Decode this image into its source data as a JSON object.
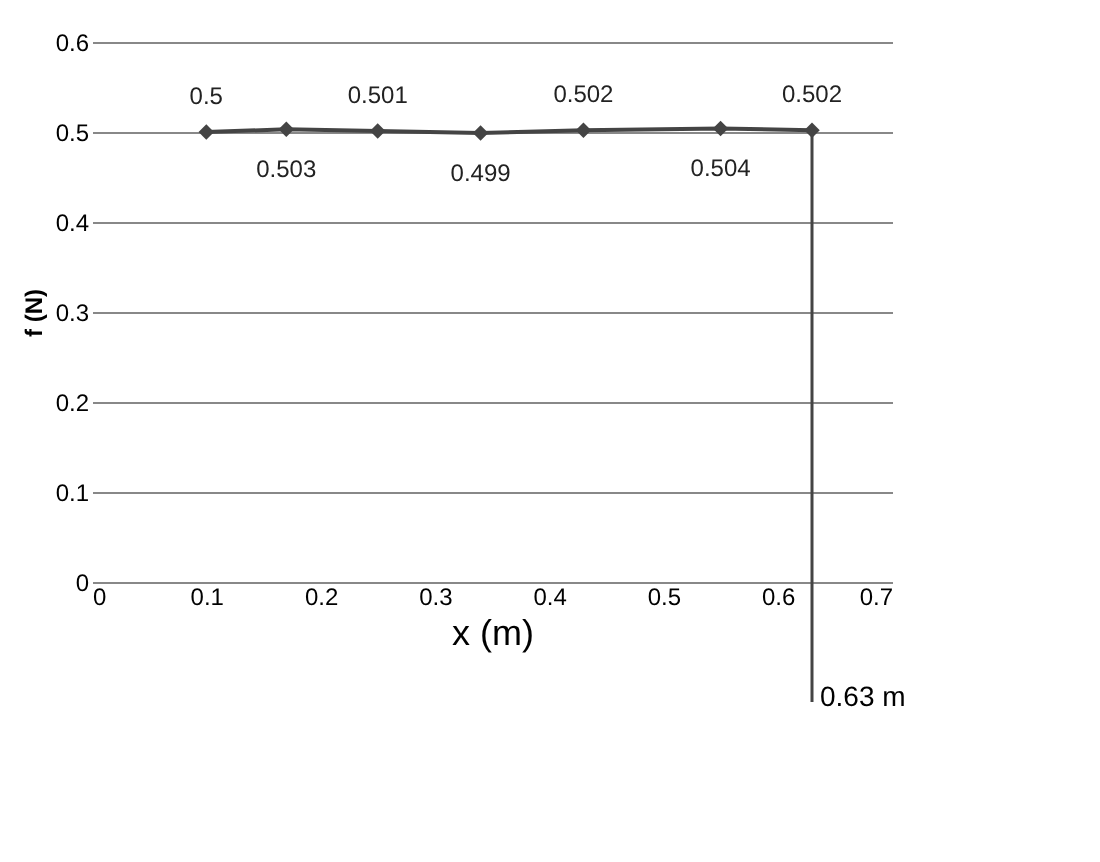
{
  "chart_data": {
    "type": "line",
    "xlabel": "x (m)",
    "ylabel": "f (N)",
    "x": [
      0.1,
      0.17,
      0.25,
      0.34,
      0.43,
      0.55,
      0.63
    ],
    "series": [
      {
        "color": "#444444",
        "values": [
          0.5,
          0.503,
          0.501,
          0.499,
          0.502,
          0.504,
          0.502
        ]
      }
    ],
    "xlim": [
      0,
      0.7
    ],
    "xticks": [
      0,
      0.1,
      0.2,
      0.3,
      0.4,
      0.5,
      0.6,
      0.7
    ],
    "ylim": [
      0,
      0.6
    ],
    "yticks": [
      0,
      0.1,
      0.2,
      0.3,
      0.4,
      0.5,
      0.6
    ],
    "grid": "y",
    "marker": "diamond",
    "line_style": "solid",
    "data_labels": true,
    "ref_lines": [
      {
        "axis": "x",
        "value": 0.63,
        "label": "0.63 m"
      }
    ]
  }
}
